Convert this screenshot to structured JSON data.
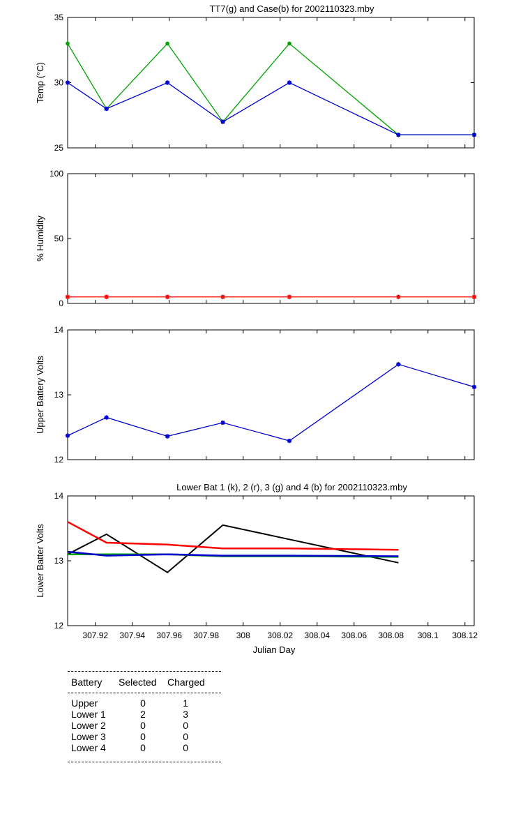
{
  "chart_data": [
    {
      "type": "line",
      "title": "TT7(g) and Case(b) for 2002110323.mby",
      "xlabel": "",
      "ylabel": "Temp  (°C)",
      "xlim": [
        307.905,
        308.125
      ],
      "ylim": [
        25,
        35
      ],
      "yticks": [
        25,
        30,
        35
      ],
      "ytick_labels": [
        "25",
        "30",
        "35"
      ],
      "series": [
        {
          "name": "TT7",
          "color": "#00a000",
          "marker": "dot",
          "x": [
            307.905,
            307.926,
            307.959,
            307.989,
            308.025,
            308.084,
            308.125
          ],
          "y": [
            33,
            28,
            33,
            27,
            33,
            26,
            26
          ]
        },
        {
          "name": "Case",
          "color": "#0000d0",
          "marker": "star",
          "x": [
            307.905,
            307.926,
            307.959,
            307.989,
            308.025,
            308.084,
            308.125
          ],
          "y": [
            30,
            28,
            30,
            27,
            30,
            26,
            26
          ]
        }
      ]
    },
    {
      "type": "line",
      "title": "",
      "xlabel": "",
      "ylabel": "% Humidity",
      "xlim": [
        307.905,
        308.125
      ],
      "ylim": [
        0,
        100
      ],
      "yticks": [
        0,
        50,
        100
      ],
      "ytick_labels": [
        "0",
        "50",
        "100"
      ],
      "series": [
        {
          "name": "Humidity",
          "color": "#ff0000",
          "marker": "star",
          "x": [
            307.905,
            307.926,
            307.959,
            307.989,
            308.025,
            308.084,
            308.125
          ],
          "y": [
            5,
            5,
            5,
            5,
            5,
            5,
            5
          ]
        }
      ]
    },
    {
      "type": "line",
      "title": "",
      "xlabel": "",
      "ylabel": "Upper Battery Volts",
      "xlim": [
        307.905,
        308.125
      ],
      "ylim": [
        12,
        14
      ],
      "yticks": [
        12,
        13,
        14
      ],
      "ytick_labels": [
        "12",
        "13",
        "14"
      ],
      "series": [
        {
          "name": "Upper",
          "color": "#0000d0",
          "marker": "star",
          "x": [
            307.905,
            307.926,
            307.959,
            307.989,
            308.025,
            308.084,
            308.125
          ],
          "y": [
            12.37,
            12.65,
            12.36,
            12.57,
            12.29,
            13.47,
            13.12
          ]
        }
      ]
    },
    {
      "type": "line",
      "title": "Lower Bat 1 (k), 2 (r), 3 (g) and 4 (b) for 2002110323.mby",
      "xlabel": "Julian Day",
      "ylabel": "Lower Batter Volts",
      "xlim": [
        307.905,
        308.125
      ],
      "ylim": [
        12,
        14
      ],
      "yticks": [
        12,
        13,
        14
      ],
      "ytick_labels": [
        "12",
        "13",
        "14"
      ],
      "xticks": [
        307.92,
        307.94,
        307.96,
        307.98,
        308,
        308.02,
        308.04,
        308.06,
        308.08,
        308.1,
        308.12
      ],
      "xtick_labels": [
        "307.92",
        "307.94",
        "307.96",
        "307.98",
        "308",
        "308.02",
        "308.04",
        "308.06",
        "308.08",
        "308.1",
        "308.12"
      ],
      "series": [
        {
          "name": "Lower 1 (k)",
          "color": "#000000",
          "width": 2,
          "x": [
            307.905,
            307.926,
            307.959,
            307.989,
            308.025,
            308.084
          ],
          "y": [
            13.1,
            13.41,
            12.82,
            13.55,
            13.33,
            12.97
          ]
        },
        {
          "name": "Lower 2 (r)",
          "color": "#ff0000",
          "width": 2.5,
          "x": [
            307.905,
            307.926,
            307.959,
            307.989,
            308.025,
            308.084
          ],
          "y": [
            13.6,
            13.28,
            13.25,
            13.19,
            13.19,
            13.17
          ]
        },
        {
          "name": "Lower 3 (g)",
          "color": "#00a000",
          "width": 2.5,
          "x": [
            307.905,
            307.926,
            307.959,
            307.989,
            308.025,
            308.084
          ],
          "y": [
            13.1,
            13.1,
            13.1,
            13.07,
            13.07,
            13.06
          ]
        },
        {
          "name": "Lower 4 (b)",
          "color": "#0000d0",
          "width": 2.5,
          "x": [
            307.905,
            307.926,
            307.959,
            307.989,
            308.025,
            308.084
          ],
          "y": [
            13.14,
            13.08,
            13.1,
            13.08,
            13.08,
            13.07
          ]
        }
      ]
    }
  ],
  "battery_table": {
    "headers": {
      "battery": "Battery",
      "selected": "Selected",
      "charged": "Charged"
    },
    "rows": [
      {
        "battery": "Upper",
        "selected": "0",
        "charged": "1"
      },
      {
        "battery": "Lower 1",
        "selected": "2",
        "charged": "3"
      },
      {
        "battery": "Lower 2",
        "selected": "0",
        "charged": "0"
      },
      {
        "battery": "Lower 3",
        "selected": "0",
        "charged": "0"
      },
      {
        "battery": "Lower 4",
        "selected": "0",
        "charged": "0"
      }
    ]
  }
}
